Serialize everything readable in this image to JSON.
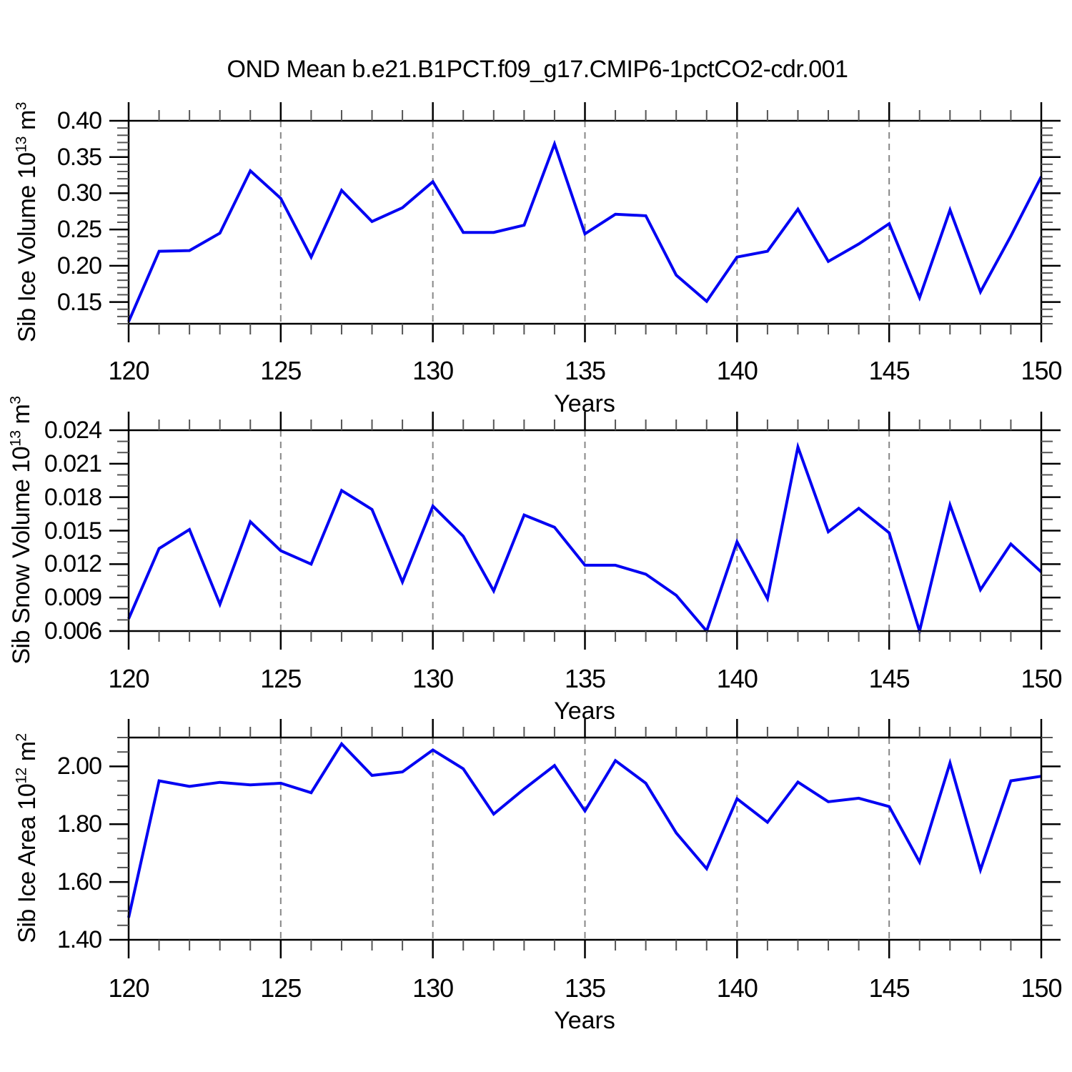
{
  "title": "OND Mean b.e21.B1PCT.f09_g17.CMIP6-1pctCO2-cdr.001",
  "colors": {
    "line": "#0202f2",
    "grid": "#878787",
    "frame": "#000000",
    "minor_tick": "#555555",
    "background": "#ffffff",
    "text": "#000000"
  },
  "x_axis": {
    "label": "Years",
    "range": [
      120,
      150
    ],
    "major_ticks": [
      120,
      125,
      130,
      135,
      140,
      145,
      150
    ],
    "minor_step": 1,
    "grid_years": [
      125,
      130,
      135,
      140,
      145
    ],
    "grid_style": "vertical-dashed"
  },
  "chart_data": [
    {
      "type": "line",
      "name": "sib-ice-volume",
      "ylabel_plain": "Sib Ice Volume 10^13 m^3",
      "ylabel": {
        "text": "Sib Ice Volume 10",
        "exp": "13",
        "unit": " m",
        "unit_exp": "3"
      },
      "xlabel": "Years",
      "ylim": [
        0.12,
        0.4
      ],
      "ytick_values": [
        0.15,
        0.2,
        0.25,
        0.3,
        0.35,
        0.4
      ],
      "ytick_labels": [
        "0.15",
        "0.20",
        "0.25",
        "0.30",
        "0.35",
        "0.40"
      ],
      "yminor_step": 0.01,
      "years": [
        120,
        121,
        122,
        123,
        124,
        125,
        126,
        127,
        128,
        129,
        130,
        131,
        132,
        133,
        134,
        135,
        136,
        137,
        138,
        139,
        140,
        141,
        142,
        143,
        144,
        145,
        146,
        147,
        148,
        149,
        150
      ],
      "values": [
        0.123,
        0.22,
        0.221,
        0.245,
        0.331,
        0.293,
        0.212,
        0.304,
        0.261,
        0.28,
        0.316,
        0.246,
        0.246,
        0.256,
        0.368,
        0.244,
        0.271,
        0.269,
        0.187,
        0.151,
        0.212,
        0.22,
        0.278,
        0.206,
        0.23,
        0.258,
        0.156,
        0.277,
        0.164,
        0.241,
        0.323
      ]
    },
    {
      "type": "line",
      "name": "sib-snow-volume",
      "ylabel_plain": "Sib Snow Volume 10^13 m^3",
      "ylabel": {
        "text": "Sib Snow Volume 10",
        "exp": "13",
        "unit": " m",
        "unit_exp": "3"
      },
      "xlabel": "Years",
      "ylim": [
        0.006,
        0.024
      ],
      "ytick_values": [
        0.006,
        0.009,
        0.012,
        0.015,
        0.018,
        0.021,
        0.024
      ],
      "ytick_labels": [
        "0.006",
        "0.009",
        "0.012",
        "0.015",
        "0.018",
        "0.021",
        "0.024"
      ],
      "yminor_step": 0.001,
      "years": [
        120,
        121,
        122,
        123,
        124,
        125,
        126,
        127,
        128,
        129,
        130,
        131,
        132,
        133,
        134,
        135,
        136,
        137,
        138,
        139,
        140,
        141,
        142,
        143,
        144,
        145,
        146,
        147,
        148,
        149,
        150
      ],
      "values": [
        0.0071,
        0.0134,
        0.0151,
        0.0084,
        0.0158,
        0.0132,
        0.012,
        0.0186,
        0.0169,
        0.0104,
        0.0172,
        0.0145,
        0.0096,
        0.0164,
        0.0153,
        0.0119,
        0.0119,
        0.0111,
        0.0092,
        0.006,
        0.014,
        0.0089,
        0.0225,
        0.0149,
        0.017,
        0.0148,
        0.006,
        0.0173,
        0.0097,
        0.0138,
        0.0113
      ]
    },
    {
      "type": "line",
      "name": "sib-ice-area",
      "ylabel_plain": "Sib Ice Area 10^12 m^2",
      "ylabel": {
        "text": "Sib Ice Area 10",
        "exp": "12",
        "unit": " m",
        "unit_exp": "2"
      },
      "xlabel": "Years",
      "ylim": [
        1.4,
        2.1
      ],
      "ytick_values": [
        1.4,
        1.6,
        1.8,
        2.0
      ],
      "ytick_labels": [
        "1.40",
        "1.60",
        "1.80",
        "2.00"
      ],
      "yminor_step": 0.05,
      "years": [
        120,
        121,
        122,
        123,
        124,
        125,
        126,
        127,
        128,
        129,
        130,
        131,
        132,
        133,
        134,
        135,
        136,
        137,
        138,
        139,
        140,
        141,
        142,
        143,
        144,
        145,
        146,
        147,
        148,
        149,
        150
      ],
      "values": [
        1.477,
        1.95,
        1.931,
        1.945,
        1.936,
        1.942,
        1.909,
        2.078,
        1.969,
        1.981,
        2.057,
        1.992,
        1.835,
        1.922,
        2.003,
        1.846,
        2.02,
        1.942,
        1.77,
        1.646,
        1.888,
        1.807,
        1.946,
        1.878,
        1.89,
        1.861,
        1.669,
        2.012,
        1.642,
        1.95,
        1.966
      ]
    }
  ]
}
